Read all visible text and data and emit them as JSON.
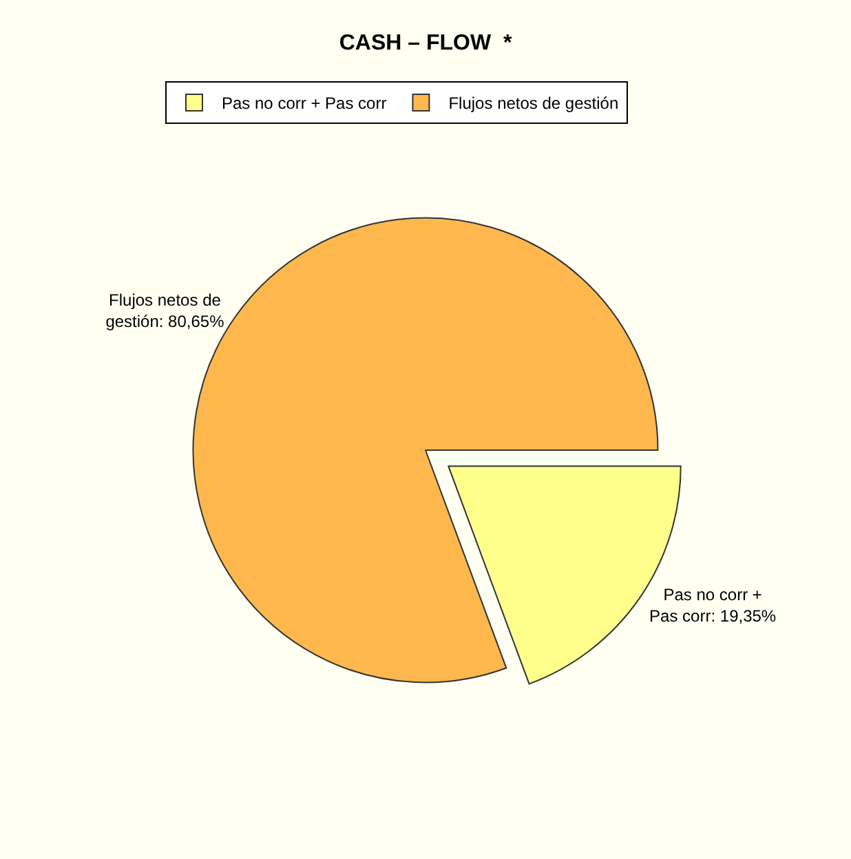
{
  "chart_data": {
    "type": "pie",
    "title": "CASH – FLOW  *",
    "categories": [
      "Pas no corr + Pas corr",
      "Flujos netos de gestión"
    ],
    "values": [
      19.35,
      80.65
    ],
    "value_labels": [
      "Pas no corr + Pas corr: 19,35%",
      "Flujos netos de gestión: 80,65%"
    ],
    "colors": [
      "#ffff8c",
      "#ffb84d"
    ],
    "legend": "top left"
  }
}
